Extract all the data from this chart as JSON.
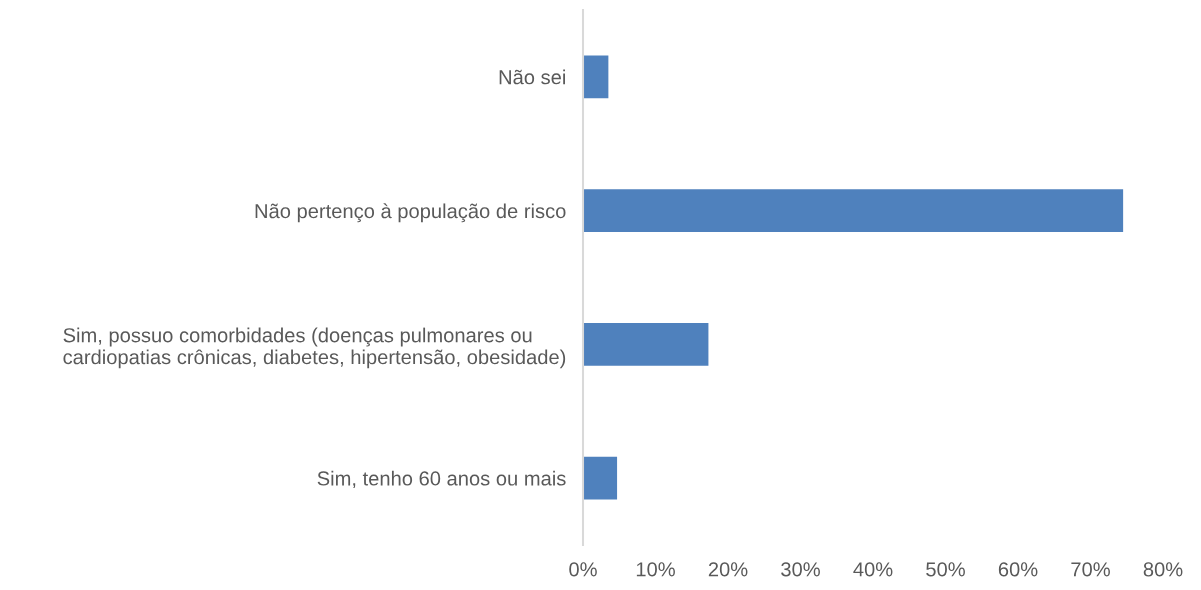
{
  "chart_data": {
    "type": "bar",
    "orientation": "horizontal",
    "categories": [
      "Não sei",
      "Não pertenço à população de risco",
      "Sim, possuo comorbidades (doenças pulmonares ou\ncardiopatias crônicas, diabetes, hipertensão, obesidade)",
      "Sim, tenho 60 anos ou mais"
    ],
    "values": [
      3.5,
      74.5,
      17.3,
      4.7
    ],
    "color": "#4f81bd",
    "xlim": [
      0,
      80
    ],
    "xticks": [
      {
        "value": 0,
        "label": "0%"
      },
      {
        "value": 10,
        "label": "10%"
      },
      {
        "value": 20,
        "label": "20%"
      },
      {
        "value": 30,
        "label": "30%"
      },
      {
        "value": 40,
        "label": "40%"
      },
      {
        "value": 50,
        "label": "50%"
      },
      {
        "value": 60,
        "label": "60%"
      },
      {
        "value": 70,
        "label": "70%"
      },
      {
        "value": 80,
        "label": "80%"
      }
    ],
    "grid": false,
    "legend": false
  }
}
